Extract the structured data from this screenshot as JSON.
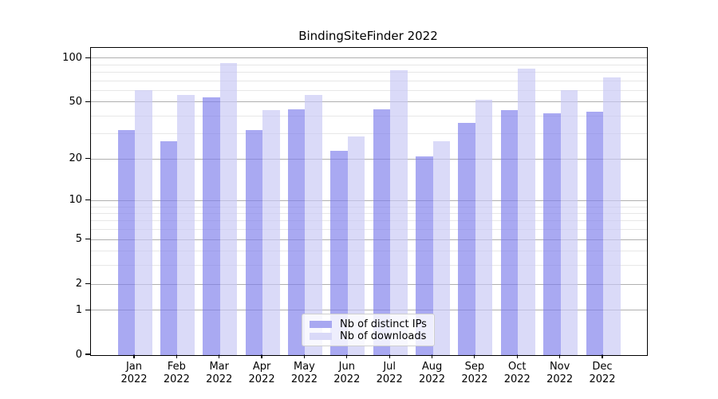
{
  "figure": {
    "background": "#ffffff"
  },
  "chart_data": {
    "type": "bar",
    "title": "BindingSiteFinder 2022",
    "categories": [
      "Jan",
      "Feb",
      "Mar",
      "Apr",
      "May",
      "Jun",
      "Jul",
      "Aug",
      "Sep",
      "Oct",
      "Nov",
      "Dec"
    ],
    "category_year": "2022",
    "series": [
      {
        "name": "Nb of distinct IPs",
        "color": "#a8a8f1",
        "fill_rgba": "rgba(124,124,236,0.66)",
        "values": [
          32,
          27,
          54,
          32,
          45,
          23,
          45,
          21,
          36,
          44,
          42,
          43
        ]
      },
      {
        "name": "Nb of downloads",
        "color": "#d9d9f8",
        "fill_rgba": "rgba(199,199,244,0.66)",
        "values": [
          61,
          56,
          93,
          44,
          56,
          29,
          83,
          27,
          52,
          85,
          61,
          74
        ]
      }
    ],
    "xlabel": "",
    "ylabel": "",
    "yscale": "log1p",
    "yticks": [
      100,
      50,
      20,
      10,
      5,
      2,
      1,
      0
    ],
    "yticks_minor": [
      3,
      4,
      6,
      7,
      8,
      9,
      30,
      40,
      60,
      70,
      80,
      90
    ],
    "ylim": [
      0,
      118
    ],
    "grid": true,
    "grid_color_major": "#b0b0b0",
    "grid_color_minor": "#e7e7e7",
    "legend_position": "lower center",
    "axis_color": "#000000",
    "tick_label_color": "#000000"
  }
}
